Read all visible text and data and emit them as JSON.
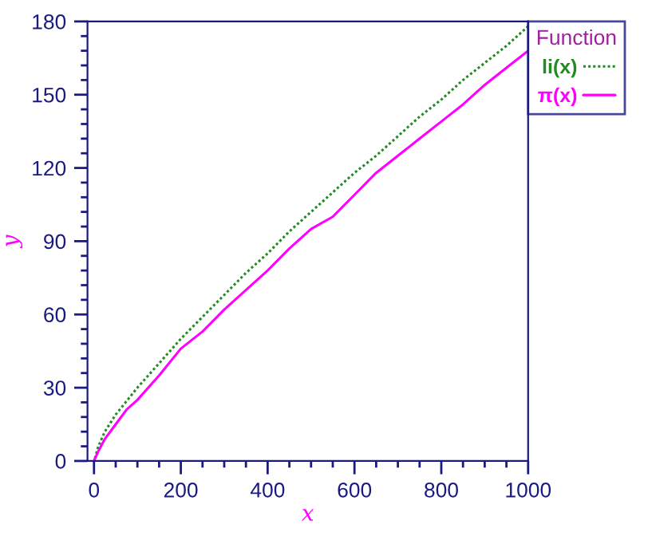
{
  "chart_data": {
    "type": "line",
    "xlabel": "x",
    "ylabel": "y",
    "legend_title": "Function",
    "legend": "top right",
    "grid": false,
    "marker": "none",
    "xlim": [
      -15,
      1000
    ],
    "ylim": [
      0,
      180
    ],
    "xticks": [
      0,
      {
        "value": 50,
        "label": null
      },
      {
        "value": 100,
        "label": null
      },
      {
        "value": 150,
        "label": null
      },
      200,
      {
        "value": 250,
        "label": null
      },
      {
        "value": 300,
        "label": null
      },
      {
        "value": 350,
        "label": null
      },
      400,
      {
        "value": 450,
        "label": null
      },
      {
        "value": 500,
        "label": null
      },
      {
        "value": 550,
        "label": null
      },
      600,
      {
        "value": 650,
        "label": null
      },
      {
        "value": 700,
        "label": null
      },
      {
        "value": 750,
        "label": null
      },
      800,
      {
        "value": 850,
        "label": null
      },
      {
        "value": 900,
        "label": null
      },
      {
        "value": 950,
        "label": null
      },
      1000
    ],
    "yticks": [
      0,
      {
        "value": 6,
        "label": null
      },
      {
        "value": 12,
        "label": null
      },
      {
        "value": 18,
        "label": null
      },
      {
        "value": 24,
        "label": null
      },
      30,
      {
        "value": 36,
        "label": null
      },
      {
        "value": 42,
        "label": null
      },
      {
        "value": 48,
        "label": null
      },
      {
        "value": 54,
        "label": null
      },
      60,
      {
        "value": 66,
        "label": null
      },
      {
        "value": 72,
        "label": null
      },
      {
        "value": 78,
        "label": null
      },
      {
        "value": 84,
        "label": null
      },
      90,
      {
        "value": 96,
        "label": null
      },
      {
        "value": 102,
        "label": null
      },
      {
        "value": 108,
        "label": null
      },
      {
        "value": 114,
        "label": null
      },
      120,
      {
        "value": 126,
        "label": null
      },
      {
        "value": 132,
        "label": null
      },
      {
        "value": 138,
        "label": null
      },
      {
        "value": 144,
        "label": null
      },
      150,
      {
        "value": 156,
        "label": null
      },
      {
        "value": 162,
        "label": null
      },
      {
        "value": 168,
        "label": null
      },
      {
        "value": 174,
        "label": null
      },
      180
    ],
    "series": [
      {
        "name": "li(x)",
        "color": "#228b22",
        "line_style": "dotted",
        "x": [
          2,
          10,
          25,
          50,
          100,
          150,
          200,
          250,
          300,
          350,
          400,
          450,
          500,
          550,
          600,
          650,
          700,
          750,
          800,
          850,
          900,
          950,
          1000
        ],
        "values": [
          1,
          6,
          12,
          19,
          30,
          40,
          50,
          59,
          68,
          77,
          85,
          94,
          102,
          110,
          118,
          125,
          133,
          141,
          148,
          156,
          163,
          170,
          178
        ]
      },
      {
        "name": "π(x)",
        "color": "#ff00ff",
        "line_style": "solid",
        "x": [
          0,
          10,
          25,
          50,
          75,
          100,
          150,
          200,
          250,
          300,
          350,
          400,
          450,
          500,
          550,
          600,
          650,
          700,
          750,
          800,
          850,
          900,
          950,
          1000
        ],
        "values": [
          0,
          4,
          9,
          15,
          21,
          25,
          35,
          46,
          53,
          62,
          70,
          78,
          87,
          95,
          100,
          109,
          118,
          125,
          132,
          139,
          146,
          154,
          161,
          168
        ]
      }
    ]
  }
}
